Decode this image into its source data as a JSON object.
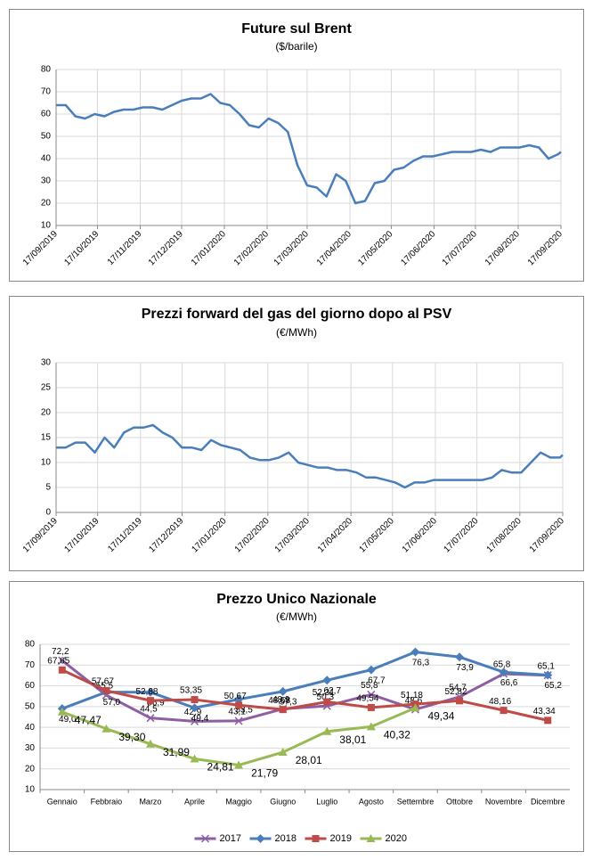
{
  "chart_data": [
    {
      "type": "line",
      "title": "Future sul Brent",
      "subtitle": "($/barile)",
      "x": [
        "2019-09-17",
        "2019-09-24",
        "2019-10-01",
        "2019-10-08",
        "2019-10-15",
        "2019-10-22",
        "2019-10-29",
        "2019-11-05",
        "2019-11-12",
        "2019-11-19",
        "2019-11-26",
        "2019-12-03",
        "2019-12-10",
        "2019-12-17",
        "2019-12-24",
        "2019-12-31",
        "2020-01-07",
        "2020-01-14",
        "2020-01-21",
        "2020-01-28",
        "2020-02-04",
        "2020-02-11",
        "2020-02-18",
        "2020-02-25",
        "2020-03-03",
        "2020-03-10",
        "2020-03-17",
        "2020-03-24",
        "2020-03-31",
        "2020-04-07",
        "2020-04-14",
        "2020-04-21",
        "2020-04-28",
        "2020-05-05",
        "2020-05-12",
        "2020-05-19",
        "2020-05-26",
        "2020-06-02",
        "2020-06-09",
        "2020-06-16",
        "2020-06-23",
        "2020-06-30",
        "2020-07-07",
        "2020-07-14",
        "2020-07-21",
        "2020-07-28",
        "2020-08-04",
        "2020-08-11",
        "2020-08-18",
        "2020-08-25",
        "2020-09-01",
        "2020-09-08",
        "2020-09-15",
        "2020-09-17"
      ],
      "series": [
        {
          "color": "#4a7ebb",
          "values": [
            64,
            64,
            59,
            58,
            60,
            59,
            61,
            62,
            62,
            63,
            63,
            62,
            64,
            66,
            67,
            67,
            69,
            65,
            64,
            60,
            55,
            54,
            58,
            56,
            52,
            37,
            28,
            27,
            23,
            33,
            30,
            20,
            21,
            29,
            30,
            35,
            36,
            39,
            41,
            41,
            42,
            43,
            43,
            43,
            44,
            43,
            45,
            45,
            45,
            46,
            45,
            40,
            42,
            43
          ]
        }
      ],
      "xlim": [
        "2019-09-17",
        "2020-09-17"
      ],
      "xticks": [
        {
          "value": "2019-09-17",
          "label": "17/09/2019"
        },
        {
          "value": "2019-10-17",
          "label": "17/10/2019"
        },
        {
          "value": "2019-11-17",
          "label": "17/11/2019"
        },
        {
          "value": "2019-12-17",
          "label": "17/12/2019"
        },
        {
          "value": "2020-01-17",
          "label": "17/01/2020"
        },
        {
          "value": "2020-02-17",
          "label": "17/02/2020"
        },
        {
          "value": "2020-03-17",
          "label": "17/03/2020"
        },
        {
          "value": "2020-04-17",
          "label": "17/04/2020"
        },
        {
          "value": "2020-05-17",
          "label": "17/05/2020"
        },
        {
          "value": "2020-06-17",
          "label": "17/06/2020"
        },
        {
          "value": "2020-07-17",
          "label": "17/07/2020"
        },
        {
          "value": "2020-08-17",
          "label": "17/08/2020"
        },
        {
          "value": "2020-09-17",
          "label": "17/09/2020"
        }
      ],
      "ylim": [
        10,
        80
      ],
      "yticks": [
        10,
        20,
        30,
        40,
        50,
        60,
        70,
        80
      ],
      "grid": true
    },
    {
      "type": "line",
      "title": "Prezzi forward del gas del giorno dopo al PSV",
      "subtitle": "(€/MWh)",
      "x": [
        "2019-09-17",
        "2019-09-24",
        "2019-10-01",
        "2019-10-08",
        "2019-10-15",
        "2019-10-22",
        "2019-10-29",
        "2019-11-05",
        "2019-11-12",
        "2019-11-19",
        "2019-11-26",
        "2019-12-03",
        "2019-12-10",
        "2019-12-17",
        "2019-12-24",
        "2019-12-31",
        "2020-01-07",
        "2020-01-14",
        "2020-01-21",
        "2020-01-28",
        "2020-02-04",
        "2020-02-11",
        "2020-02-18",
        "2020-02-25",
        "2020-03-03",
        "2020-03-10",
        "2020-03-17",
        "2020-03-24",
        "2020-03-31",
        "2020-04-07",
        "2020-04-14",
        "2020-04-21",
        "2020-04-28",
        "2020-05-05",
        "2020-05-12",
        "2020-05-19",
        "2020-05-26",
        "2020-06-02",
        "2020-06-09",
        "2020-06-16",
        "2020-06-23",
        "2020-06-30",
        "2020-07-07",
        "2020-07-14",
        "2020-07-21",
        "2020-07-28",
        "2020-08-04",
        "2020-08-11",
        "2020-08-18",
        "2020-08-25",
        "2020-09-01",
        "2020-09-08",
        "2020-09-15",
        "2020-09-17"
      ],
      "series": [
        {
          "color": "#4a7ebb",
          "values": [
            13,
            13,
            14,
            14,
            12,
            15,
            13,
            16,
            17,
            17,
            17.5,
            16,
            15,
            13,
            13,
            12.5,
            14.5,
            13.5,
            13,
            12.5,
            11,
            10.5,
            10.5,
            11,
            12,
            10,
            9.5,
            9,
            9,
            8.5,
            8.5,
            8,
            7,
            7,
            6.5,
            6,
            5,
            6,
            6,
            6.5,
            6.5,
            6.5,
            6.5,
            6.5,
            6.5,
            7,
            8.5,
            8,
            8,
            10,
            12,
            11,
            11,
            11.5
          ]
        }
      ],
      "xlim": [
        "2019-09-17",
        "2020-09-17"
      ],
      "xticks": [
        {
          "value": "2019-09-17",
          "label": "17/09/2019"
        },
        {
          "value": "2019-10-17",
          "label": "17/10/2019"
        },
        {
          "value": "2019-11-17",
          "label": "17/11/2019"
        },
        {
          "value": "2019-12-17",
          "label": "17/12/2019"
        },
        {
          "value": "2020-01-17",
          "label": "17/01/2020"
        },
        {
          "value": "2020-02-17",
          "label": "17/02/2020"
        },
        {
          "value": "2020-03-17",
          "label": "17/03/2020"
        },
        {
          "value": "2020-04-17",
          "label": "17/04/2020"
        },
        {
          "value": "2020-05-17",
          "label": "17/05/2020"
        },
        {
          "value": "2020-06-17",
          "label": "17/06/2020"
        },
        {
          "value": "2020-07-17",
          "label": "17/07/2020"
        },
        {
          "value": "2020-08-17",
          "label": "17/08/2020"
        },
        {
          "value": "2020-09-17",
          "label": "17/09/2020"
        }
      ],
      "ylim": [
        0,
        30
      ],
      "yticks": [
        0,
        5,
        10,
        15,
        20,
        25,
        30
      ],
      "grid": true
    },
    {
      "type": "line",
      "title": "Prezzo Unico Nazionale",
      "subtitle": "(€/MWh)",
      "categories": [
        "Gennaio",
        "Febbraio",
        "Marzo",
        "Aprile",
        "Maggio",
        "Giugno",
        "Luglio",
        "Agosto",
        "Settembre",
        "Ottobre",
        "Novembre",
        "Dicembre"
      ],
      "series": [
        {
          "name": "2017",
          "color": "#8e5ea2",
          "marker": "x",
          "values": [
            72.2,
            55.5,
            44.5,
            42.9,
            43.1,
            48.9,
            50.3,
            55.8,
            48.6,
            54.7,
            65.8,
            65.1
          ],
          "value_labels": [
            "72,2",
            "55,5",
            "44,5",
            "42,9",
            "43,1",
            "48,9",
            "50,3",
            "55,8",
            "48,6",
            "54,7",
            "65,8",
            "65,1"
          ]
        },
        {
          "name": "2018",
          "color": "#4a7ebb",
          "marker": "diamond",
          "values": [
            49.0,
            57.0,
            56.9,
            49.4,
            53.5,
            57.3,
            62.7,
            67.7,
            76.3,
            73.9,
            66.6,
            65.2
          ],
          "value_labels": [
            "49,0",
            "57,0",
            "56,9",
            "49,4",
            "53,5",
            "57,3",
            "62,7",
            "67,7",
            "76,3",
            "73,9",
            "66,6",
            "65,2"
          ]
        },
        {
          "name": "2019",
          "color": "#be4b48",
          "marker": "square",
          "values": [
            67.65,
            57.67,
            52.88,
            53.35,
            50.67,
            48.58,
            52.31,
            49.54,
            51.18,
            52.82,
            48.16,
            43.34
          ],
          "value_labels": [
            "67,65",
            "57,67",
            "52,88",
            "53,35",
            "50,67",
            "48,58",
            "52,31",
            "49,54",
            "51,18",
            "52,82",
            "48,16",
            "43,34"
          ]
        },
        {
          "name": "2020",
          "color": "#98b954",
          "marker": "triangle",
          "values": [
            47.47,
            39.3,
            31.99,
            24.81,
            21.79,
            28.01,
            38.01,
            40.32,
            49.34,
            null,
            null,
            null
          ],
          "value_labels": [
            "47,47",
            "39,30",
            "31,99",
            "24,81",
            "21,79",
            "28,01",
            "38,01",
            "40,32",
            "49,34",
            null,
            null,
            null
          ]
        }
      ],
      "ylim": [
        10,
        80
      ],
      "yticks": [
        10,
        20,
        30,
        40,
        50,
        60,
        70,
        80
      ],
      "grid": true,
      "legend": "bottom"
    }
  ]
}
